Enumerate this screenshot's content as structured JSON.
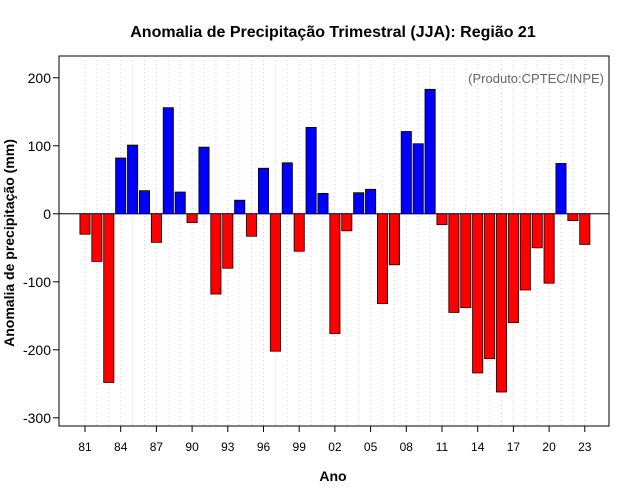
{
  "chart_data": {
    "type": "bar",
    "title": "Anomalia de Precipitação Trimestral (JJA): Região 21",
    "xlabel": "Ano",
    "ylabel": "Anomalia de precipitação (mm)",
    "annotation": "(Produto:CPTEC/INPE)",
    "ylim": [
      -312,
      232
    ],
    "yticks": [
      200,
      100,
      0,
      -100,
      -200,
      -300
    ],
    "ytick_labels": [
      "200",
      "100",
      "0",
      "-100",
      "-200",
      "-300"
    ],
    "xtick_labels": [
      "81",
      "84",
      "87",
      "90",
      "93",
      "96",
      "99",
      "02",
      "05",
      "08",
      "11",
      "14",
      "17",
      "20",
      "23"
    ],
    "xtick_years": [
      1981,
      1984,
      1987,
      1990,
      1993,
      1996,
      1999,
      2002,
      2005,
      2008,
      2011,
      2014,
      2017,
      2020,
      2023
    ],
    "grid": true,
    "positive_color": "#0000ff",
    "negative_color": "#ff0000",
    "categories": [
      1981,
      1982,
      1983,
      1984,
      1985,
      1986,
      1987,
      1988,
      1989,
      1990,
      1991,
      1992,
      1993,
      1994,
      1995,
      1996,
      1997,
      1998,
      1999,
      2000,
      2001,
      2002,
      2003,
      2004,
      2005,
      2006,
      2007,
      2008,
      2009,
      2010,
      2011,
      2012,
      2013,
      2014,
      2015,
      2016,
      2017,
      2018,
      2019,
      2020,
      2021,
      2022,
      2023
    ],
    "values": [
      -30,
      -70,
      -248,
      82,
      101,
      34,
      -42,
      156,
      32,
      -13,
      98,
      -118,
      -80,
      20,
      -33,
      67,
      -202,
      75,
      -55,
      127,
      30,
      -176,
      -25,
      31,
      36,
      -132,
      -75,
      121,
      103,
      183,
      -16,
      -145,
      -138,
      -234,
      -213,
      -262,
      -160,
      -112,
      -50,
      -102,
      74,
      -10,
      -45
    ]
  }
}
